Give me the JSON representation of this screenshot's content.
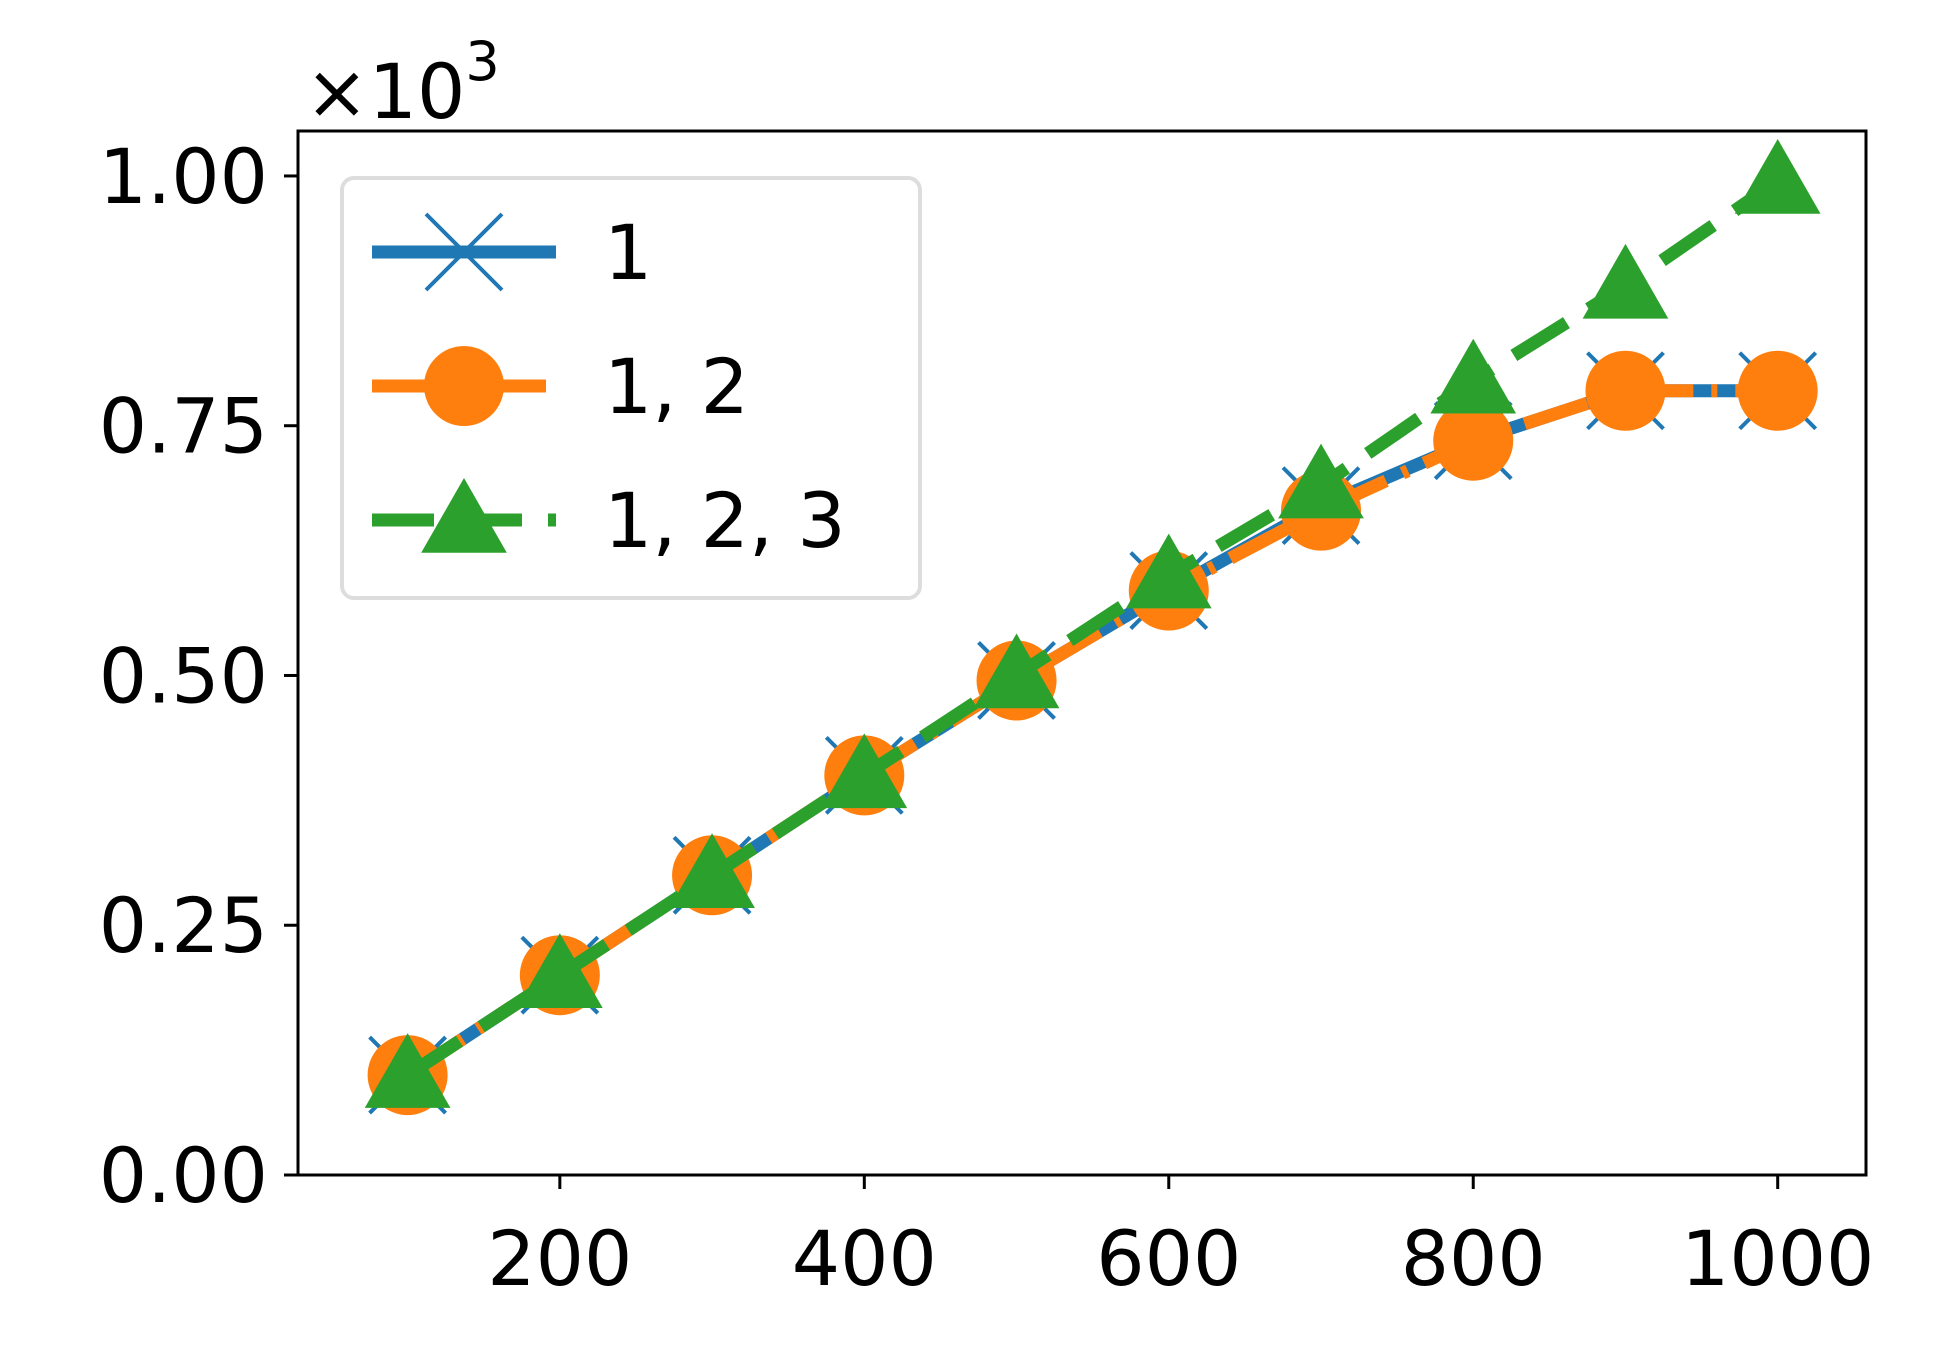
{
  "chart_data": {
    "type": "line",
    "title": "",
    "xlabel": "",
    "ylabel": "",
    "y_scale_label": "×10",
    "y_scale_exponent": "3",
    "xlim": [
      28,
      1058
    ],
    "ylim": [
      0,
      1.045
    ],
    "x_ticks": [
      200,
      400,
      600,
      800,
      1000
    ],
    "x_tick_labels": [
      "200",
      "400",
      "600",
      "800",
      "1000"
    ],
    "y_ticks": [
      0,
      0.25,
      0.5,
      0.75,
      1.0
    ],
    "y_tick_labels": [
      "0.00",
      "0.25",
      "0.50",
      "0.75",
      "1.00"
    ],
    "grid": false,
    "legend_position": "top-left",
    "x": [
      100,
      200,
      300,
      400,
      500,
      600,
      700,
      800,
      900,
      1000
    ],
    "series": [
      {
        "name": "1",
        "color": "#1f77b4",
        "marker": "x",
        "linestyle": "solid",
        "values": [
          0.1,
          0.2,
          0.3,
          0.4,
          0.495,
          0.585,
          0.67,
          0.735,
          0.785,
          0.785
        ]
      },
      {
        "name": "1, 2",
        "color": "#ff7f0e",
        "marker": "circle",
        "linestyle": "dashdot",
        "values": [
          0.1,
          0.2,
          0.3,
          0.4,
          0.495,
          0.585,
          0.665,
          0.735,
          0.785,
          0.785
        ]
      },
      {
        "name": "1, 2, 3",
        "color": "#2ca02c",
        "marker": "triangle",
        "linestyle": "dashed",
        "values": [
          0.1,
          0.2,
          0.3,
          0.4,
          0.5,
          0.6,
          0.69,
          0.795,
          0.89,
          0.995
        ]
      }
    ]
  }
}
